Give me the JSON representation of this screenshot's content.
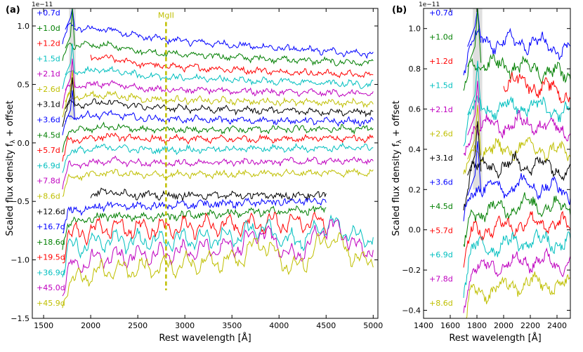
{
  "chart_data": [
    {
      "panel_label": "(a)",
      "type": "line",
      "xlabel": "Rest wavelength [Å]",
      "ylabel": "Scaled flux density f",
      "ylabel_sub": "λ",
      "ylabel_rest": " + offset",
      "scale_label": "1e−11",
      "xlim": [
        1380,
        5050
      ],
      "ylim": [
        -1.5,
        1.15
      ],
      "xticks": [
        1500,
        2000,
        2500,
        3000,
        3500,
        4000,
        4500,
        5000
      ],
      "yticks": [
        -1.5,
        -1.0,
        -0.5,
        0.0,
        0.5,
        1.0
      ],
      "xtick_labels": [
        "1500",
        "2000",
        "2500",
        "3000",
        "3500",
        "4000",
        "4500",
        "5000"
      ],
      "ytick_labels": [
        "−1.5",
        "−1.0",
        "−0.5",
        "0.0",
        "0.5",
        "1.0"
      ],
      "annotation": {
        "text": "MgII",
        "x": 2800,
        "y": 1.07,
        "color": "#bfbf00"
      },
      "shaded_region": [
        1770,
        1840
      ],
      "shaded_y": [
        0.2,
        1.15
      ],
      "series": [
        {
          "name": "+0.7d",
          "color": "#0000ff",
          "x_start": 1700,
          "x_end": 5000,
          "level": 1.02,
          "final": 0.76
        },
        {
          "name": "+1.0d",
          "color": "#007f00",
          "x_start": 1700,
          "x_end": 5000,
          "level": 0.86,
          "final": 0.68
        },
        {
          "name": "+1.2d",
          "color": "#ff0000",
          "x_start": 2000,
          "x_end": 5000,
          "level": 0.72,
          "final": 0.58
        },
        {
          "name": "+1.5d",
          "color": "#00bfbf",
          "x_start": 1700,
          "x_end": 5000,
          "level": 0.63,
          "final": 0.5
        },
        {
          "name": "+2.1d",
          "color": "#bf00bf",
          "x_start": 1700,
          "x_end": 5000,
          "level": 0.5,
          "final": 0.42
        },
        {
          "name": "+2.6d",
          "color": "#bfbf00",
          "x_start": 1700,
          "x_end": 5000,
          "level": 0.4,
          "final": 0.34
        },
        {
          "name": "+3.1d",
          "color": "#000000",
          "x_start": 1700,
          "x_end": 5000,
          "level": 0.34,
          "final": 0.26
        },
        {
          "name": "+3.6d",
          "color": "#0000ff",
          "x_start": 1700,
          "x_end": 5000,
          "level": 0.23,
          "final": 0.18
        },
        {
          "name": "+4.5d",
          "color": "#007f00",
          "x_start": 1700,
          "x_end": 5000,
          "level": 0.1,
          "final": 0.12
        },
        {
          "name": "+5.7d",
          "color": "#ff0000",
          "x_start": 1700,
          "x_end": 5000,
          "level": 0.02,
          "final": 0.04
        },
        {
          "name": "+6.9d",
          "color": "#00bfbf",
          "x_start": 1700,
          "x_end": 5000,
          "level": -0.08,
          "final": -0.04
        },
        {
          "name": "+7.8d",
          "color": "#bf00bf",
          "x_start": 1700,
          "x_end": 5000,
          "level": -0.2,
          "final": -0.15
        },
        {
          "name": "+8.6d",
          "color": "#bfbf00",
          "x_start": 1700,
          "x_end": 5000,
          "level": -0.3,
          "final": -0.25
        },
        {
          "name": "+12.6d",
          "color": "#000000",
          "x_start": 2000,
          "x_end": 4500,
          "level": -0.45,
          "final": -0.45
        },
        {
          "name": "+16.7d",
          "color": "#0000ff",
          "x_start": 1700,
          "x_end": 4500,
          "level": -0.6,
          "final": -0.49
        },
        {
          "name": "+18.6d",
          "color": "#007f00",
          "x_start": 1700,
          "x_end": 4500,
          "level": -0.7,
          "final": -0.57
        },
        {
          "name": "+19.5d",
          "color": "#ff0000",
          "x_start": 1700,
          "x_end": 4500,
          "level": -0.8,
          "final": -0.67
        },
        {
          "name": "+36.9d",
          "color": "#00bfbf",
          "x_start": 1700,
          "x_end": 5000,
          "level": -0.92,
          "final": -0.75
        },
        {
          "name": "+45.0d",
          "color": "#bf00bf",
          "x_start": 1700,
          "x_end": 5000,
          "level": -1.1,
          "final": -0.8
        },
        {
          "name": "+45.9d",
          "color": "#bfbf00",
          "x_start": 1700,
          "x_end": 5000,
          "level": -1.22,
          "final": -0.9
        }
      ]
    },
    {
      "panel_label": "(b)",
      "type": "line",
      "xlabel": "Rest wavelength [Å]",
      "ylabel": "Scaled flux density f",
      "ylabel_sub": "λ",
      "ylabel_rest": " + offset",
      "scale_label": "1e−11",
      "xlim": [
        1400,
        2500
      ],
      "ylim": [
        -0.44,
        1.1
      ],
      "xticks": [
        1400,
        1600,
        1800,
        2000,
        2200,
        2400
      ],
      "yticks": [
        -0.4,
        -0.2,
        0.0,
        0.2,
        0.4,
        0.6,
        0.8,
        1.0
      ],
      "xtick_labels": [
        "1400",
        "1600",
        "1800",
        "2000",
        "2200",
        "2400"
      ],
      "ytick_labels": [
        "−0.4",
        "−0.2",
        "0.0",
        "0.2",
        "0.4",
        "0.6",
        "0.8",
        "1.0"
      ],
      "shaded_region": [
        1770,
        1840
      ],
      "shaded_y": [
        0.2,
        1.1
      ],
      "series": [
        {
          "name": "+0.7d",
          "color": "#0000ff",
          "x_start": 1700,
          "x_end": 2500,
          "level": 0.96,
          "final": 0.88
        },
        {
          "name": "+1.0d",
          "color": "#007f00",
          "x_start": 1700,
          "x_end": 2500,
          "level": 0.86,
          "final": 0.75
        },
        {
          "name": "+1.2d",
          "color": "#ff0000",
          "x_start": 2000,
          "x_end": 2500,
          "level": 0.74,
          "final": 0.66
        },
        {
          "name": "+1.5d",
          "color": "#00bfbf",
          "x_start": 1700,
          "x_end": 2500,
          "level": 0.62,
          "final": 0.57
        },
        {
          "name": "+2.1d",
          "color": "#bf00bf",
          "x_start": 1700,
          "x_end": 2500,
          "level": 0.52,
          "final": 0.49
        },
        {
          "name": "+2.6d",
          "color": "#bfbf00",
          "x_start": 1700,
          "x_end": 2500,
          "level": 0.4,
          "final": 0.37
        },
        {
          "name": "+3.1d",
          "color": "#000000",
          "x_start": 1700,
          "x_end": 2500,
          "level": 0.32,
          "final": 0.29
        },
        {
          "name": "+3.6d",
          "color": "#0000ff",
          "x_start": 1700,
          "x_end": 2500,
          "level": 0.22,
          "final": 0.18
        },
        {
          "name": "+4.5d",
          "color": "#007f00",
          "x_start": 1700,
          "x_end": 2500,
          "level": 0.08,
          "final": 0.1
        },
        {
          "name": "+5.7d",
          "color": "#ff0000",
          "x_start": 1700,
          "x_end": 2500,
          "level": -0.01,
          "final": 0.01
        },
        {
          "name": "+6.9d",
          "color": "#00bfbf",
          "x_start": 1700,
          "x_end": 2500,
          "level": -0.1,
          "final": -0.08
        },
        {
          "name": "+7.8d",
          "color": "#bf00bf",
          "x_start": 1700,
          "x_end": 2500,
          "level": -0.2,
          "final": -0.18
        },
        {
          "name": "+8.6d",
          "color": "#bfbf00",
          "x_start": 1700,
          "x_end": 2500,
          "level": -0.32,
          "final": -0.29
        }
      ]
    }
  ]
}
